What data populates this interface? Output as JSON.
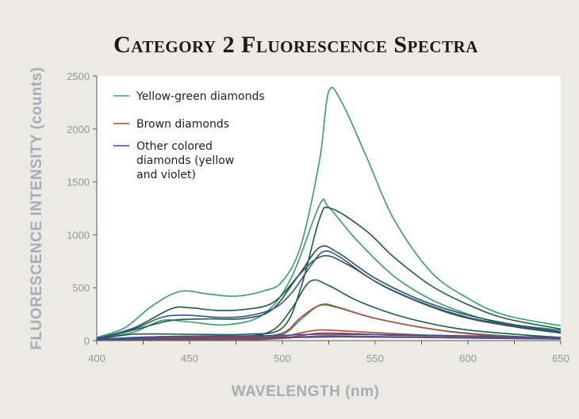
{
  "chart_data": {
    "type": "line",
    "title": "Category 2 Fluorescence Spectra",
    "xlabel": "WAVELENGTH (nm)",
    "ylabel": "FLUORESCENCE INTENSITY (counts)",
    "xlim": [
      400,
      650
    ],
    "ylim": [
      0,
      2500
    ],
    "xticks": [
      400,
      450,
      500,
      550,
      600,
      650
    ],
    "yticks": [
      0,
      500,
      1000,
      1500,
      2000,
      2500
    ],
    "grid": false,
    "legend_position": "top-left",
    "legend": [
      {
        "label": "Yellow-green diamonds",
        "color": "#3a9a6e"
      },
      {
        "label": "Brown diamonds",
        "color": "#a64a3c"
      },
      {
        "label": "Other colored diamonds (yellow and violet)",
        "color": "#3f4e98"
      }
    ],
    "series": [
      {
        "group": "Yellow-green diamonds",
        "color": "#3a9a6e",
        "points": [
          [
            400,
            30
          ],
          [
            415,
            120
          ],
          [
            430,
            330
          ],
          [
            445,
            465
          ],
          [
            460,
            440
          ],
          [
            475,
            420
          ],
          [
            490,
            470
          ],
          [
            500,
            560
          ],
          [
            510,
            900
          ],
          [
            520,
            1700
          ],
          [
            525,
            2355
          ],
          [
            532,
            2250
          ],
          [
            545,
            1750
          ],
          [
            560,
            1150
          ],
          [
            580,
            650
          ],
          [
            600,
            400
          ],
          [
            620,
            240
          ],
          [
            650,
            140
          ]
        ]
      },
      {
        "group": "Yellow-green diamonds",
        "color": "#3a9a6e",
        "points": [
          [
            400,
            20
          ],
          [
            420,
            80
          ],
          [
            435,
            190
          ],
          [
            448,
            180
          ],
          [
            470,
            150
          ],
          [
            490,
            250
          ],
          [
            505,
            600
          ],
          [
            520,
            1280
          ],
          [
            525,
            1260
          ],
          [
            540,
            950
          ],
          [
            560,
            610
          ],
          [
            580,
            390
          ],
          [
            600,
            250
          ],
          [
            620,
            160
          ],
          [
            650,
            100
          ]
        ]
      },
      {
        "group": "Yellow-green diamonds",
        "color": "#1f5a3e",
        "points": [
          [
            400,
            10
          ],
          [
            420,
            60
          ],
          [
            450,
            60
          ],
          [
            480,
            60
          ],
          [
            500,
            120
          ],
          [
            510,
            500
          ],
          [
            520,
            1150
          ],
          [
            526,
            1250
          ],
          [
            545,
            1040
          ],
          [
            560,
            790
          ],
          [
            580,
            520
          ],
          [
            600,
            340
          ],
          [
            620,
            210
          ],
          [
            650,
            110
          ]
        ]
      },
      {
        "group": "Yellow-green diamonds",
        "color": "#1f5a3e",
        "points": [
          [
            400,
            20
          ],
          [
            420,
            120
          ],
          [
            440,
            300
          ],
          [
            450,
            310
          ],
          [
            465,
            285
          ],
          [
            480,
            295
          ],
          [
            495,
            360
          ],
          [
            508,
            600
          ],
          [
            520,
            880
          ],
          [
            530,
            830
          ],
          [
            550,
            590
          ],
          [
            575,
            380
          ],
          [
            600,
            240
          ],
          [
            625,
            150
          ],
          [
            650,
            85
          ]
        ]
      },
      {
        "group": "Yellow-green diamonds",
        "color": "#1f5a3e",
        "points": [
          [
            400,
            15
          ],
          [
            420,
            100
          ],
          [
            440,
            190
          ],
          [
            460,
            205
          ],
          [
            480,
            210
          ],
          [
            495,
            300
          ],
          [
            510,
            640
          ],
          [
            522,
            800
          ],
          [
            535,
            720
          ],
          [
            555,
            510
          ],
          [
            580,
            320
          ],
          [
            600,
            210
          ],
          [
            625,
            130
          ],
          [
            650,
            70
          ]
        ]
      },
      {
        "group": "Yellow-green diamonds",
        "color": "#1f5a3e",
        "points": [
          [
            400,
            10
          ],
          [
            420,
            30
          ],
          [
            450,
            40
          ],
          [
            480,
            40
          ],
          [
            495,
            100
          ],
          [
            505,
            300
          ],
          [
            515,
            560
          ],
          [
            525,
            520
          ],
          [
            540,
            380
          ],
          [
            560,
            250
          ],
          [
            580,
            160
          ],
          [
            600,
            100
          ],
          [
            625,
            60
          ],
          [
            650,
            30
          ]
        ]
      },
      {
        "group": "Yellow-green diamonds",
        "color": "#3a9a6e",
        "points": [
          [
            400,
            10
          ],
          [
            420,
            25
          ],
          [
            450,
            30
          ],
          [
            480,
            30
          ],
          [
            500,
            60
          ],
          [
            510,
            200
          ],
          [
            520,
            330
          ],
          [
            530,
            310
          ],
          [
            550,
            210
          ],
          [
            580,
            110
          ],
          [
            600,
            70
          ],
          [
            625,
            40
          ],
          [
            650,
            20
          ]
        ]
      },
      {
        "group": "Brown diamonds",
        "color": "#a64a3c",
        "points": [
          [
            400,
            10
          ],
          [
            420,
            25
          ],
          [
            450,
            30
          ],
          [
            480,
            35
          ],
          [
            500,
            70
          ],
          [
            510,
            220
          ],
          [
            521,
            340
          ],
          [
            530,
            315
          ],
          [
            550,
            210
          ],
          [
            580,
            110
          ],
          [
            600,
            65
          ],
          [
            625,
            35
          ],
          [
            650,
            20
          ]
        ]
      },
      {
        "group": "Brown diamonds",
        "color": "#a64a3c",
        "points": [
          [
            400,
            5
          ],
          [
            440,
            15
          ],
          [
            480,
            20
          ],
          [
            500,
            40
          ],
          [
            512,
            80
          ],
          [
            520,
            100
          ],
          [
            535,
            90
          ],
          [
            555,
            70
          ],
          [
            580,
            50
          ],
          [
            610,
            35
          ],
          [
            650,
            20
          ]
        ]
      },
      {
        "group": "Brown diamonds",
        "color": "#a64a3c",
        "points": [
          [
            400,
            5
          ],
          [
            440,
            10
          ],
          [
            480,
            15
          ],
          [
            505,
            35
          ],
          [
            520,
            70
          ],
          [
            540,
            65
          ],
          [
            560,
            50
          ],
          [
            590,
            40
          ],
          [
            620,
            30
          ],
          [
            650,
            20
          ]
        ]
      },
      {
        "group": "Brown diamonds",
        "color": "#a64a3c",
        "points": [
          [
            400,
            3
          ],
          [
            450,
            8
          ],
          [
            490,
            12
          ],
          [
            515,
            40
          ],
          [
            530,
            45
          ],
          [
            560,
            35
          ],
          [
            600,
            25
          ],
          [
            650,
            15
          ]
        ]
      },
      {
        "group": "Other colored diamonds (yellow and violet)",
        "color": "#3f4e98",
        "points": [
          [
            400,
            20
          ],
          [
            420,
            110
          ],
          [
            435,
            220
          ],
          [
            448,
            240
          ],
          [
            465,
            220
          ],
          [
            480,
            230
          ],
          [
            495,
            300
          ],
          [
            505,
            450
          ],
          [
            515,
            700
          ],
          [
            522,
            840
          ],
          [
            530,
            800
          ],
          [
            550,
            560
          ],
          [
            575,
            360
          ],
          [
            600,
            220
          ],
          [
            625,
            140
          ],
          [
            650,
            80
          ]
        ]
      },
      {
        "group": "Other colored diamonds (yellow and violet)",
        "color": "#3f4e98",
        "points": [
          [
            400,
            10
          ],
          [
            440,
            40
          ],
          [
            480,
            45
          ],
          [
            500,
            50
          ],
          [
            520,
            60
          ],
          [
            560,
            55
          ],
          [
            600,
            45
          ],
          [
            650,
            30
          ]
        ]
      },
      {
        "group": "Other colored diamonds (yellow and violet)",
        "color": "#3f4e98",
        "points": [
          [
            400,
            5
          ],
          [
            440,
            20
          ],
          [
            480,
            25
          ],
          [
            510,
            30
          ],
          [
            530,
            35
          ],
          [
            570,
            30
          ],
          [
            620,
            20
          ],
          [
            650,
            15
          ]
        ]
      }
    ]
  }
}
